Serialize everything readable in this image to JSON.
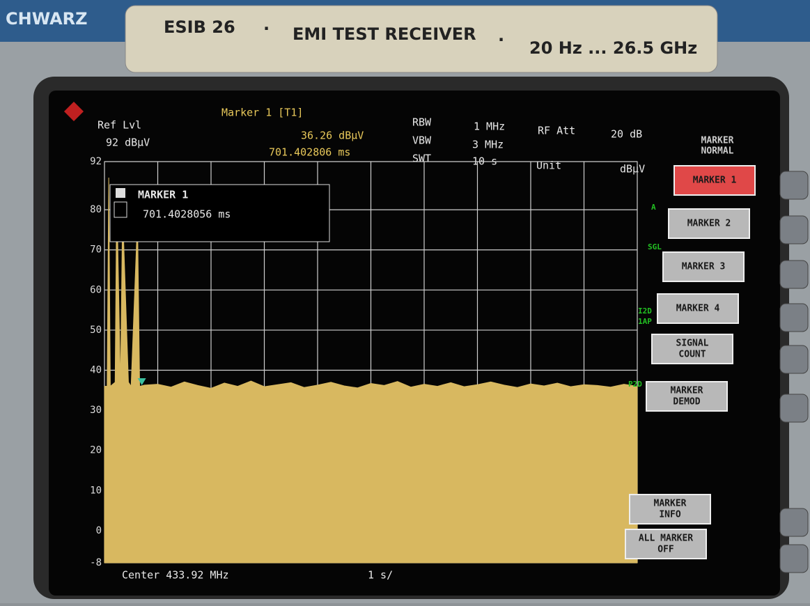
{
  "header": {
    "brand": "CHWARZ",
    "model": "ESIB 26",
    "product": "EMI TEST RECEIVER",
    "range": "20 Hz ... 26.5 GHz"
  },
  "settings": {
    "ref_lvl_label": "Ref Lvl",
    "ref_lvl": "92 dBµV",
    "marker_title": "Marker 1 [T1]",
    "marker_level": "36.26 dBµV",
    "marker_time": "701.402806 ms",
    "rbw_label": "RBW",
    "rbw": "1 MHz",
    "vbw_label": "VBW",
    "vbw": "3 MHz",
    "swt_label": "SWT",
    "swt": "10 s",
    "rf_att_label": "RF Att",
    "rf_att": "20 dB",
    "unit_label": "Unit",
    "unit": "dBµV"
  },
  "marker_box": {
    "title": "MARKER 1",
    "value": "701.4028056 ms"
  },
  "softkeys": {
    "title": [
      "MARKER",
      "NORMAL"
    ],
    "buttons": [
      [
        "MARKER 1"
      ],
      [
        "MARKER 2"
      ],
      [
        "MARKER 3"
      ],
      [
        "MARKER 4"
      ],
      [
        "SIGNAL",
        "COUNT"
      ],
      [
        "MARKER",
        "DEMOD"
      ],
      [
        "MARKER",
        "INFO"
      ],
      [
        "ALL MARKER",
        "OFF"
      ]
    ]
  },
  "side_labels": [
    "A",
    "SGL",
    "I2D",
    "1AP",
    "P2D"
  ],
  "footer": {
    "center": "Center 433.92 MHz",
    "span": "1 s/"
  },
  "chart_data": {
    "type": "area",
    "color": "#d8b860",
    "x": [
      0,
      0.05,
      0.08,
      0.11,
      0.2,
      0.23,
      0.3,
      0.34,
      0.45,
      0.5,
      0.62,
      0.66,
      0.75,
      1,
      1.25,
      1.5,
      1.75,
      2,
      2.25,
      2.5,
      2.75,
      3,
      3.25,
      3.5,
      3.75,
      4,
      4.25,
      4.5,
      4.75,
      5,
      5.25,
      5.5,
      5.75,
      6,
      6.25,
      6.5,
      6.75,
      7,
      7.25,
      7.5,
      7.75,
      8,
      8.25,
      8.5,
      8.75,
      9,
      9.25,
      9.5,
      9.75,
      10
    ],
    "values": [
      36,
      36,
      88,
      36,
      37,
      85,
      36,
      80,
      37,
      36,
      78,
      36,
      36.3,
      36.5,
      35.8,
      37.1,
      36.2,
      35.5,
      36.8,
      36.0,
      37.3,
      35.9,
      36.4,
      36.9,
      35.7,
      36.3,
      37.0,
      36.1,
      35.6,
      36.7,
      36.2,
      37.2,
      35.8,
      36.5,
      36.0,
      36.9,
      35.9,
      36.4,
      37.1,
      36.3,
      35.7,
      36.6,
      36.1,
      36.8,
      35.9,
      36.4,
      36.2,
      35.8,
      36.5,
      36.0
    ],
    "xlim": [
      0,
      10
    ],
    "xticks": [
      0,
      1,
      2,
      3,
      4,
      5,
      6,
      7,
      8,
      9,
      10
    ],
    "ylim": [
      -8,
      92
    ],
    "yticks": [
      92,
      80,
      70,
      60,
      50,
      40,
      30,
      20,
      10,
      0,
      -8
    ],
    "grid": true,
    "marker": {
      "x": 0.701402806,
      "y": 36.26
    }
  }
}
